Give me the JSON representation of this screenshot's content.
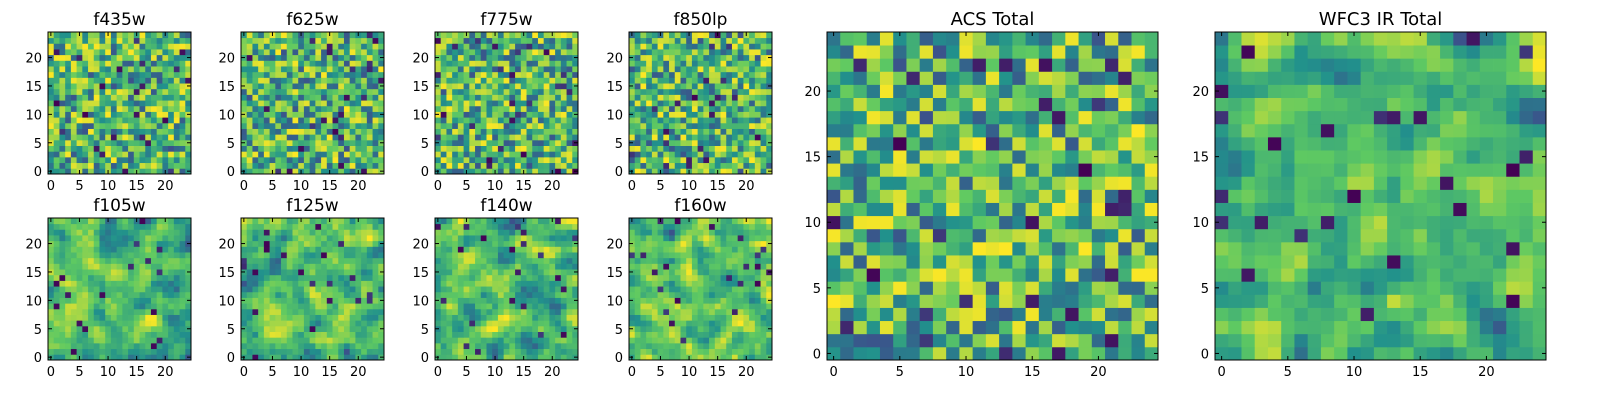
{
  "figure": {
    "type": "heatmap-grid",
    "colormap": [
      "#440154",
      "#3b528b",
      "#21918c",
      "#5ec962",
      "#fde725"
    ]
  },
  "chart_data": [
    {
      "type": "heatmap",
      "title": "f435w",
      "xlim": [
        0,
        24
      ],
      "ylim": [
        0,
        24
      ],
      "xticks": [
        0,
        5,
        10,
        15,
        20
      ],
      "yticks": [
        0,
        5,
        10,
        15,
        20
      ],
      "seed": 11,
      "contrast": 0.9,
      "smooth": 0
    },
    {
      "type": "heatmap",
      "title": "f625w",
      "xlim": [
        0,
        24
      ],
      "ylim": [
        0,
        24
      ],
      "xticks": [
        0,
        5,
        10,
        15,
        20
      ],
      "yticks": [
        0,
        5,
        10,
        15,
        20
      ],
      "seed": 23,
      "contrast": 1.0,
      "smooth": 0
    },
    {
      "type": "heatmap",
      "title": "f775w",
      "xlim": [
        0,
        24
      ],
      "ylim": [
        0,
        24
      ],
      "xticks": [
        0,
        5,
        10,
        15,
        20
      ],
      "yticks": [
        0,
        5,
        10,
        15,
        20
      ],
      "seed": 37,
      "contrast": 1.0,
      "smooth": 0
    },
    {
      "type": "heatmap",
      "title": "f850lp",
      "xlim": [
        0,
        24
      ],
      "ylim": [
        0,
        24
      ],
      "xticks": [
        0,
        5,
        10,
        15,
        20
      ],
      "yticks": [
        0,
        5,
        10,
        15,
        20
      ],
      "seed": 41,
      "contrast": 1.0,
      "smooth": 0
    },
    {
      "type": "heatmap",
      "title": "f105w",
      "xlim": [
        0,
        24
      ],
      "ylim": [
        0,
        24
      ],
      "xticks": [
        0,
        5,
        10,
        15,
        20
      ],
      "yticks": [
        0,
        5,
        10,
        15,
        20
      ],
      "seed": 53,
      "contrast": 1.0,
      "smooth": 1
    },
    {
      "type": "heatmap",
      "title": "f125w",
      "xlim": [
        0,
        24
      ],
      "ylim": [
        0,
        24
      ],
      "xticks": [
        0,
        5,
        10,
        15,
        20
      ],
      "yticks": [
        0,
        5,
        10,
        15,
        20
      ],
      "seed": 67,
      "contrast": 1.0,
      "smooth": 1
    },
    {
      "type": "heatmap",
      "title": "f140w",
      "xlim": [
        0,
        24
      ],
      "ylim": [
        0,
        24
      ],
      "xticks": [
        0,
        5,
        10,
        15,
        20
      ],
      "yticks": [
        0,
        5,
        10,
        15,
        20
      ],
      "seed": 71,
      "contrast": 1.0,
      "smooth": 1
    },
    {
      "type": "heatmap",
      "title": "f160w",
      "xlim": [
        0,
        24
      ],
      "ylim": [
        0,
        24
      ],
      "xticks": [
        0,
        5,
        10,
        15,
        20
      ],
      "yticks": [
        0,
        5,
        10,
        15,
        20
      ],
      "seed": 89,
      "contrast": 1.0,
      "smooth": 1
    },
    {
      "type": "heatmap",
      "title": "ACS Total",
      "xlim": [
        0,
        24
      ],
      "ylim": [
        0,
        24
      ],
      "xticks": [
        0,
        5,
        10,
        15,
        20
      ],
      "yticks": [
        0,
        5,
        10,
        15,
        20
      ],
      "seed": 97,
      "contrast": 1.0,
      "smooth": 0
    },
    {
      "type": "heatmap",
      "title": "WFC3 IR Total",
      "xlim": [
        0,
        24
      ],
      "ylim": [
        0,
        24
      ],
      "xticks": [
        0,
        5,
        10,
        15,
        20
      ],
      "yticks": [
        0,
        5,
        10,
        15,
        20
      ],
      "seed": 113,
      "contrast": 1.0,
      "smooth": 1
    }
  ]
}
